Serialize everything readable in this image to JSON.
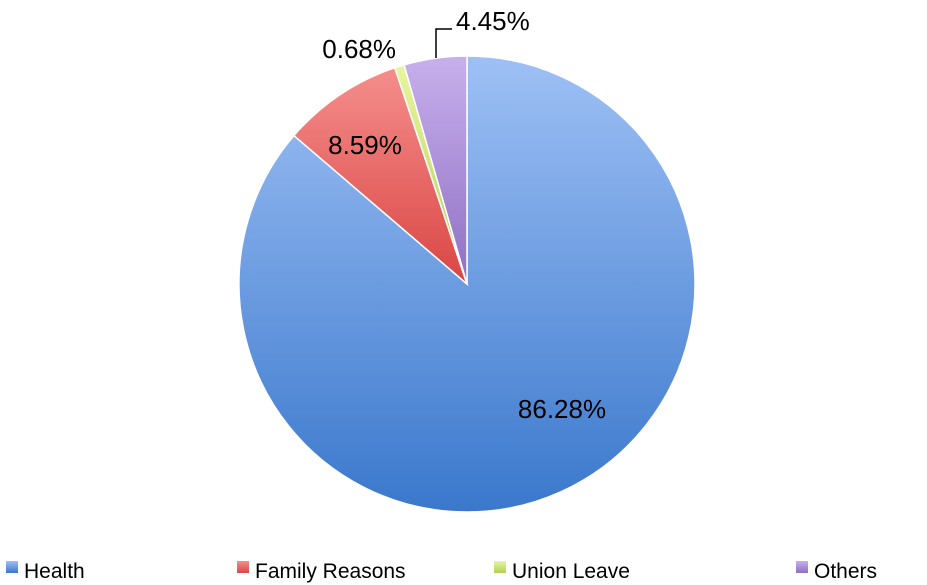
{
  "chart_data": {
    "type": "pie",
    "title": "",
    "legend_position": "bottom",
    "slices": [
      {
        "name": "Health",
        "value": 86.28,
        "label": "86.28%",
        "color": "#5b8fd9"
      },
      {
        "name": "Family Reasons",
        "value": 8.59,
        "label": "8.59%",
        "color": "#e05a57"
      },
      {
        "name": "Union Leave",
        "value": 0.68,
        "label": "0.68%",
        "color": "#bcd96a"
      },
      {
        "name": "Others",
        "value": 4.45,
        "label": "4.45%",
        "color": "#9b7dc9"
      }
    ]
  }
}
